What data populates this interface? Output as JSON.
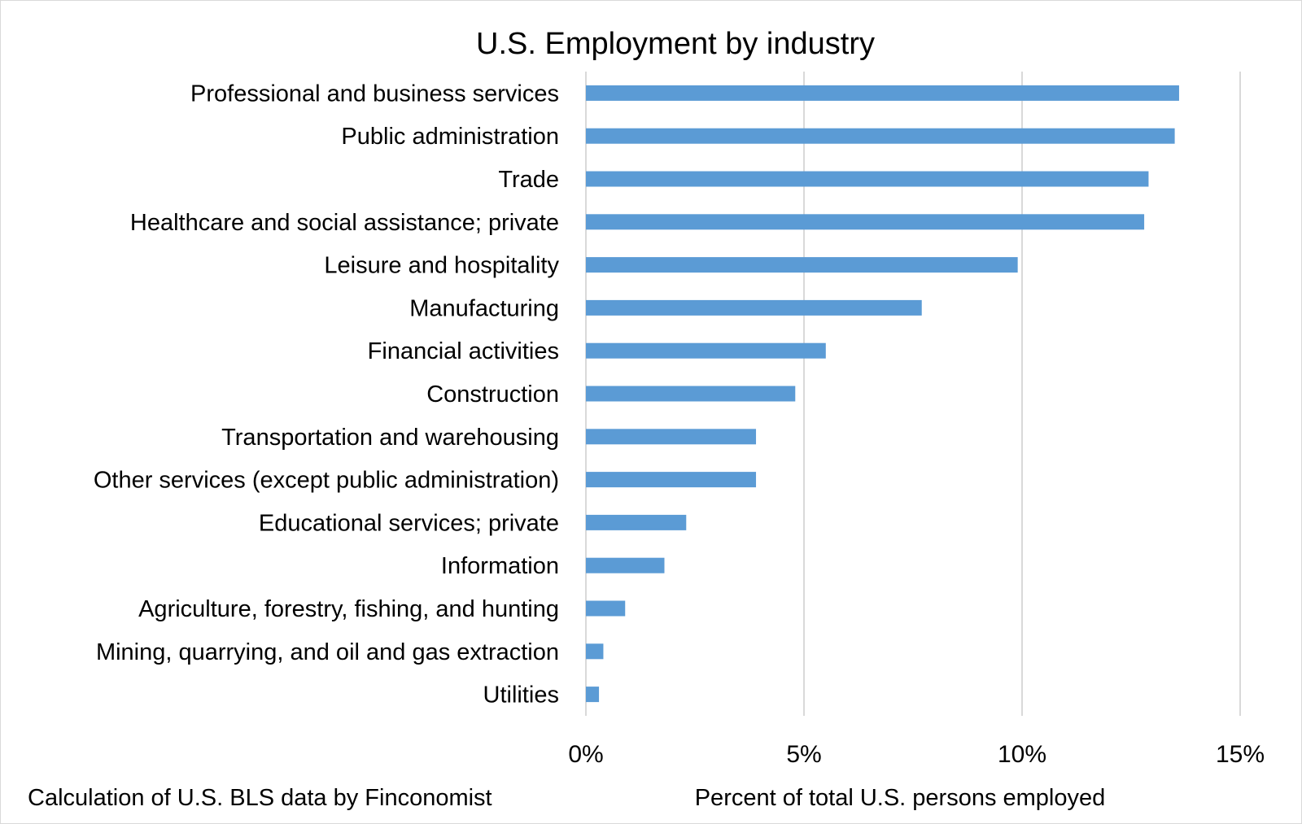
{
  "chart_data": {
    "type": "bar",
    "orientation": "horizontal",
    "title": "U.S. Employment by industry",
    "xlabel": "Percent of total U.S. persons employed",
    "source_note": "Calculation of U.S. BLS data by Finconomist",
    "xlim": [
      0,
      15
    ],
    "x_ticks": [
      0,
      5,
      10,
      15
    ],
    "x_tick_labels": [
      "0%",
      "5%",
      "10%",
      "15%"
    ],
    "grid": "vertical",
    "bar_color": "#5b9bd5",
    "gridline_color": "#d9d9d9",
    "categories": [
      "Professional and business services",
      "Public administration",
      "Trade",
      "Healthcare and social assistance; private",
      "Leisure and hospitality",
      "Manufacturing",
      "Financial activities",
      "Construction",
      "Transportation and warehousing",
      "Other services (except public administration)",
      "Educational services; private",
      "Information",
      "Agriculture, forestry, fishing, and hunting",
      "Mining, quarrying, and oil and gas extraction",
      "Utilities"
    ],
    "values": [
      13.6,
      13.5,
      12.9,
      12.8,
      9.9,
      7.7,
      5.5,
      4.8,
      3.9,
      3.9,
      2.3,
      1.8,
      0.9,
      0.4,
      0.3
    ]
  }
}
